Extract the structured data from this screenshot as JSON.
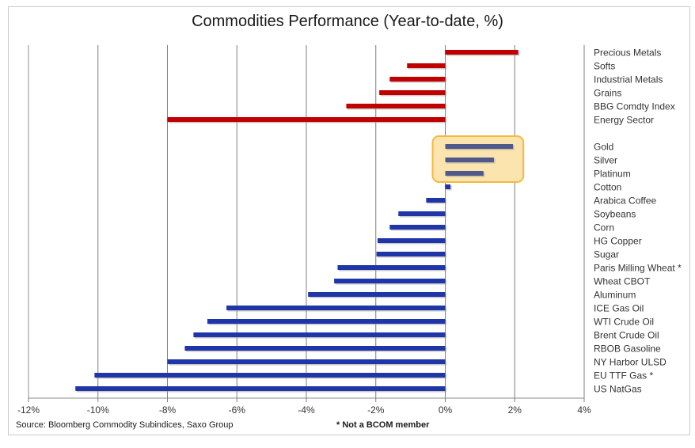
{
  "chart_data": {
    "type": "bar",
    "orientation": "horizontal",
    "title": "Commodities Performance (Year-to-date, %)",
    "xlim": [
      -12,
      4
    ],
    "xticks": [
      "-12%",
      "-10%",
      "-8%",
      "-6%",
      "-4%",
      "-2%",
      "0%",
      "2%",
      "4%"
    ],
    "grid": true,
    "groups": [
      {
        "color": "#c00000",
        "categories": [
          "Precious Metals",
          "Softs",
          "Industrial Metals",
          "Grains",
          "BBG Comdty Index",
          "Energy Sector"
        ],
        "values": [
          2.1,
          -1.1,
          -1.6,
          -1.9,
          -2.85,
          -8.0
        ]
      },
      {
        "color": "#4f5a8a",
        "highlighted": true,
        "categories": [
          "Gold",
          "Silver",
          "Platinum"
        ],
        "values": [
          1.95,
          1.4,
          1.1
        ]
      },
      {
        "color": "#1f36a8",
        "categories": [
          "Cotton",
          "Arabica Coffee",
          "Soybeans",
          "Corn",
          "HG Copper",
          "Sugar",
          "Paris Milling Wheat *",
          "Wheat CBOT",
          "Aluminum",
          "ICE Gas Oil",
          "WTI Crude Oil",
          "Brent Crude Oil",
          "RBOB Gasoline",
          "NY Harbor ULSD",
          "EU TTF Gas *",
          "US NatGas"
        ],
        "values": [
          0.15,
          -0.55,
          -1.35,
          -1.6,
          -1.95,
          -1.98,
          -3.1,
          -3.2,
          -3.95,
          -6.3,
          -6.85,
          -7.25,
          -7.5,
          -8.0,
          -10.1,
          -10.65
        ]
      }
    ],
    "highlight_color": "#f4b942",
    "source": "Source: Bloomberg Commodity Subindices, Saxo Group",
    "note": "* Not a BCOM member"
  }
}
